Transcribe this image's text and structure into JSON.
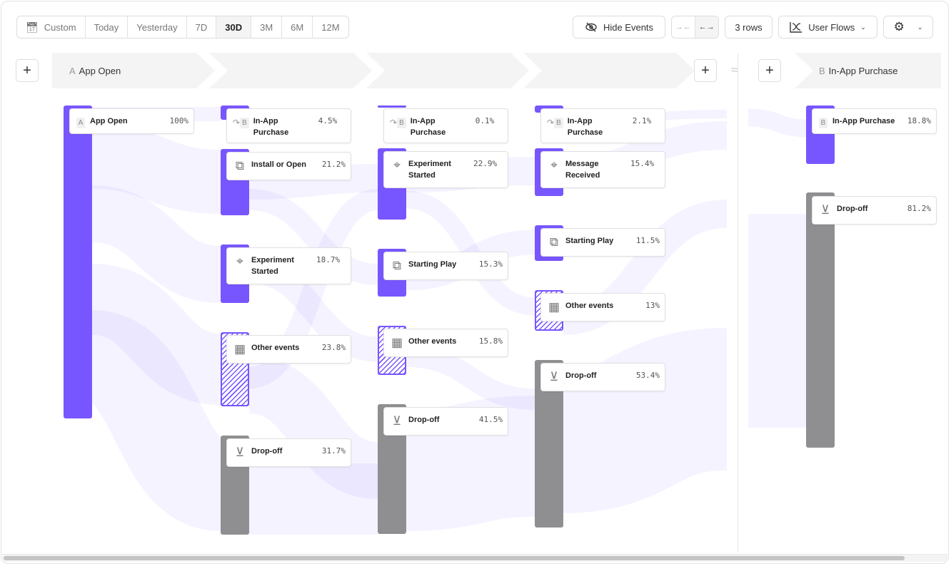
{
  "toolbar": {
    "date_ranges": [
      "Custom",
      "Today",
      "Yesterday",
      "7D",
      "30D",
      "3M",
      "6M",
      "12M"
    ],
    "selected_range": "30D",
    "hide_events": "Hide Events",
    "rows": "3 rows",
    "view": "User Flows"
  },
  "steps": {
    "start_letter": "A",
    "start_label": "App Open",
    "end_letter": "B",
    "end_label": "In-App Purchase"
  },
  "colors": {
    "accent": "#7856ff",
    "dropoff": "#8f8f92"
  },
  "columns": [
    {
      "nodes": [
        {
          "badge": "A",
          "name": "App Open",
          "pct": "100%",
          "kind": "purple",
          "icon": "badge"
        }
      ]
    },
    {
      "nodes": [
        {
          "badge": "B",
          "name": "In-App Purchase",
          "pct": "4.5%",
          "kind": "purple",
          "icon": "return-arrow-icon"
        },
        {
          "name": "Install or Open",
          "pct": "21.2%",
          "kind": "purple",
          "icon": "copy-icon"
        },
        {
          "name": "Experiment Started",
          "pct": "18.7%",
          "kind": "purple",
          "icon": "cursor-click-icon"
        },
        {
          "name": "Other events",
          "pct": "23.8%",
          "kind": "hatched",
          "icon": "grid-icon"
        },
        {
          "name": "Drop-off",
          "pct": "31.7%",
          "kind": "grey",
          "icon": "arrow-down-circle-icon"
        }
      ]
    },
    {
      "nodes": [
        {
          "badge": "B",
          "name": "In-App Purchase",
          "pct": "0.1%",
          "kind": "purple",
          "icon": "return-arrow-icon"
        },
        {
          "name": "Experiment Started",
          "pct": "22.9%",
          "kind": "purple",
          "icon": "cursor-click-icon"
        },
        {
          "name": "Starting Play",
          "pct": "15.3%",
          "kind": "purple",
          "icon": "copy-icon"
        },
        {
          "name": "Other events",
          "pct": "15.8%",
          "kind": "hatched",
          "icon": "grid-icon"
        },
        {
          "name": "Drop-off",
          "pct": "41.5%",
          "kind": "grey",
          "icon": "arrow-down-circle-icon"
        }
      ]
    },
    {
      "nodes": [
        {
          "badge": "B",
          "name": "In-App Purchase",
          "pct": "2.1%",
          "kind": "purple",
          "icon": "return-arrow-icon"
        },
        {
          "name": "Message Received",
          "pct": "15.4%",
          "kind": "purple",
          "icon": "cursor-click-icon"
        },
        {
          "name": "Starting Play",
          "pct": "11.5%",
          "kind": "purple",
          "icon": "copy-icon"
        },
        {
          "name": "Other events",
          "pct": "13%",
          "kind": "hatched",
          "icon": "grid-icon"
        },
        {
          "name": "Drop-off",
          "pct": "53.4%",
          "kind": "grey",
          "icon": "arrow-down-circle-icon"
        }
      ]
    },
    {
      "nodes": [
        {
          "badge": "B",
          "name": "In-App Purchase",
          "pct": "18.8%",
          "kind": "purple",
          "icon": "badge"
        },
        {
          "name": "Drop-off",
          "pct": "81.2%",
          "kind": "grey",
          "icon": "arrow-down-circle-icon"
        }
      ]
    }
  ]
}
